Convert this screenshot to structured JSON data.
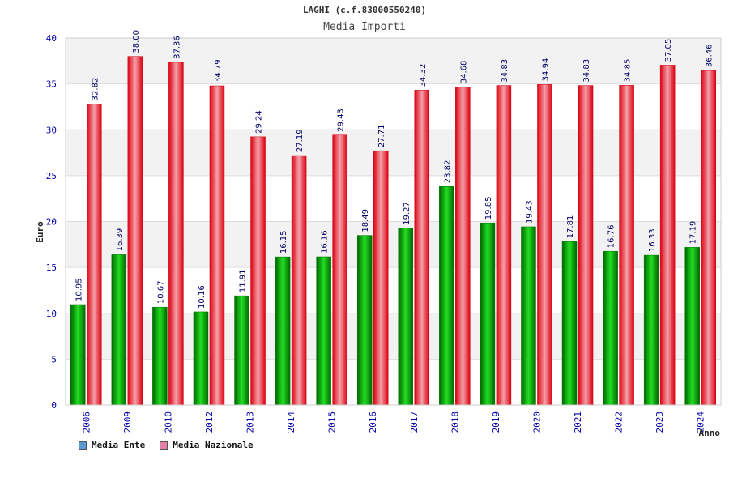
{
  "header": {
    "title": "LAGHI (c.f.83000550240)",
    "subtitle": "Media Importi"
  },
  "legend": {
    "items": [
      {
        "label": "Media Ente",
        "color": "#5b9bd5"
      },
      {
        "label": "Media Nazionale",
        "color": "#e17fa6"
      }
    ]
  },
  "colors": {
    "ente_bar": "#00aa00",
    "nazionale_bar": "#ee1122",
    "tick_label": "#0000aa",
    "value_label": "#000066"
  },
  "chart_data": {
    "type": "bar",
    "title": "Media Importi",
    "xlabel": "Anno",
    "ylabel": "Euro",
    "ylim": [
      0,
      40
    ],
    "yticks": [
      0,
      5,
      10,
      15,
      20,
      25,
      30,
      35,
      40
    ],
    "grid": true,
    "legend_position": "bottom-left",
    "categories": [
      "2006",
      "2009",
      "2010",
      "2012",
      "2013",
      "2014",
      "2015",
      "2016",
      "2017",
      "2018",
      "2019",
      "2020",
      "2021",
      "2022",
      "2023",
      "2024"
    ],
    "series": [
      {
        "name": "Media Ente",
        "values": [
          10.95,
          16.39,
          10.67,
          10.16,
          11.91,
          16.15,
          16.16,
          18.49,
          19.27,
          23.82,
          19.85,
          19.43,
          17.81,
          16.76,
          16.33,
          17.19
        ],
        "labels": [
          "10.95",
          "16.39",
          "10.67",
          "10.16",
          "11.91",
          "16.15",
          "16.16",
          "18.49",
          "19.27",
          "23.82",
          "19.85",
          "19.43",
          "17.81",
          "16.76",
          "16.33",
          "17.19"
        ]
      },
      {
        "name": "Media Nazionale",
        "values": [
          32.82,
          38.0,
          37.36,
          34.79,
          29.24,
          27.19,
          29.43,
          27.71,
          34.32,
          34.68,
          34.83,
          34.94,
          34.83,
          34.85,
          37.05,
          36.46
        ],
        "labels": [
          "32.82",
          "38.00",
          "37.36",
          "34.79",
          "29.24",
          "27.19",
          "29.43",
          "27.71",
          "34.32",
          "34.68",
          "34.83",
          "34.94",
          "34.83",
          "34.85",
          "37.05",
          "36.46"
        ]
      }
    ]
  }
}
